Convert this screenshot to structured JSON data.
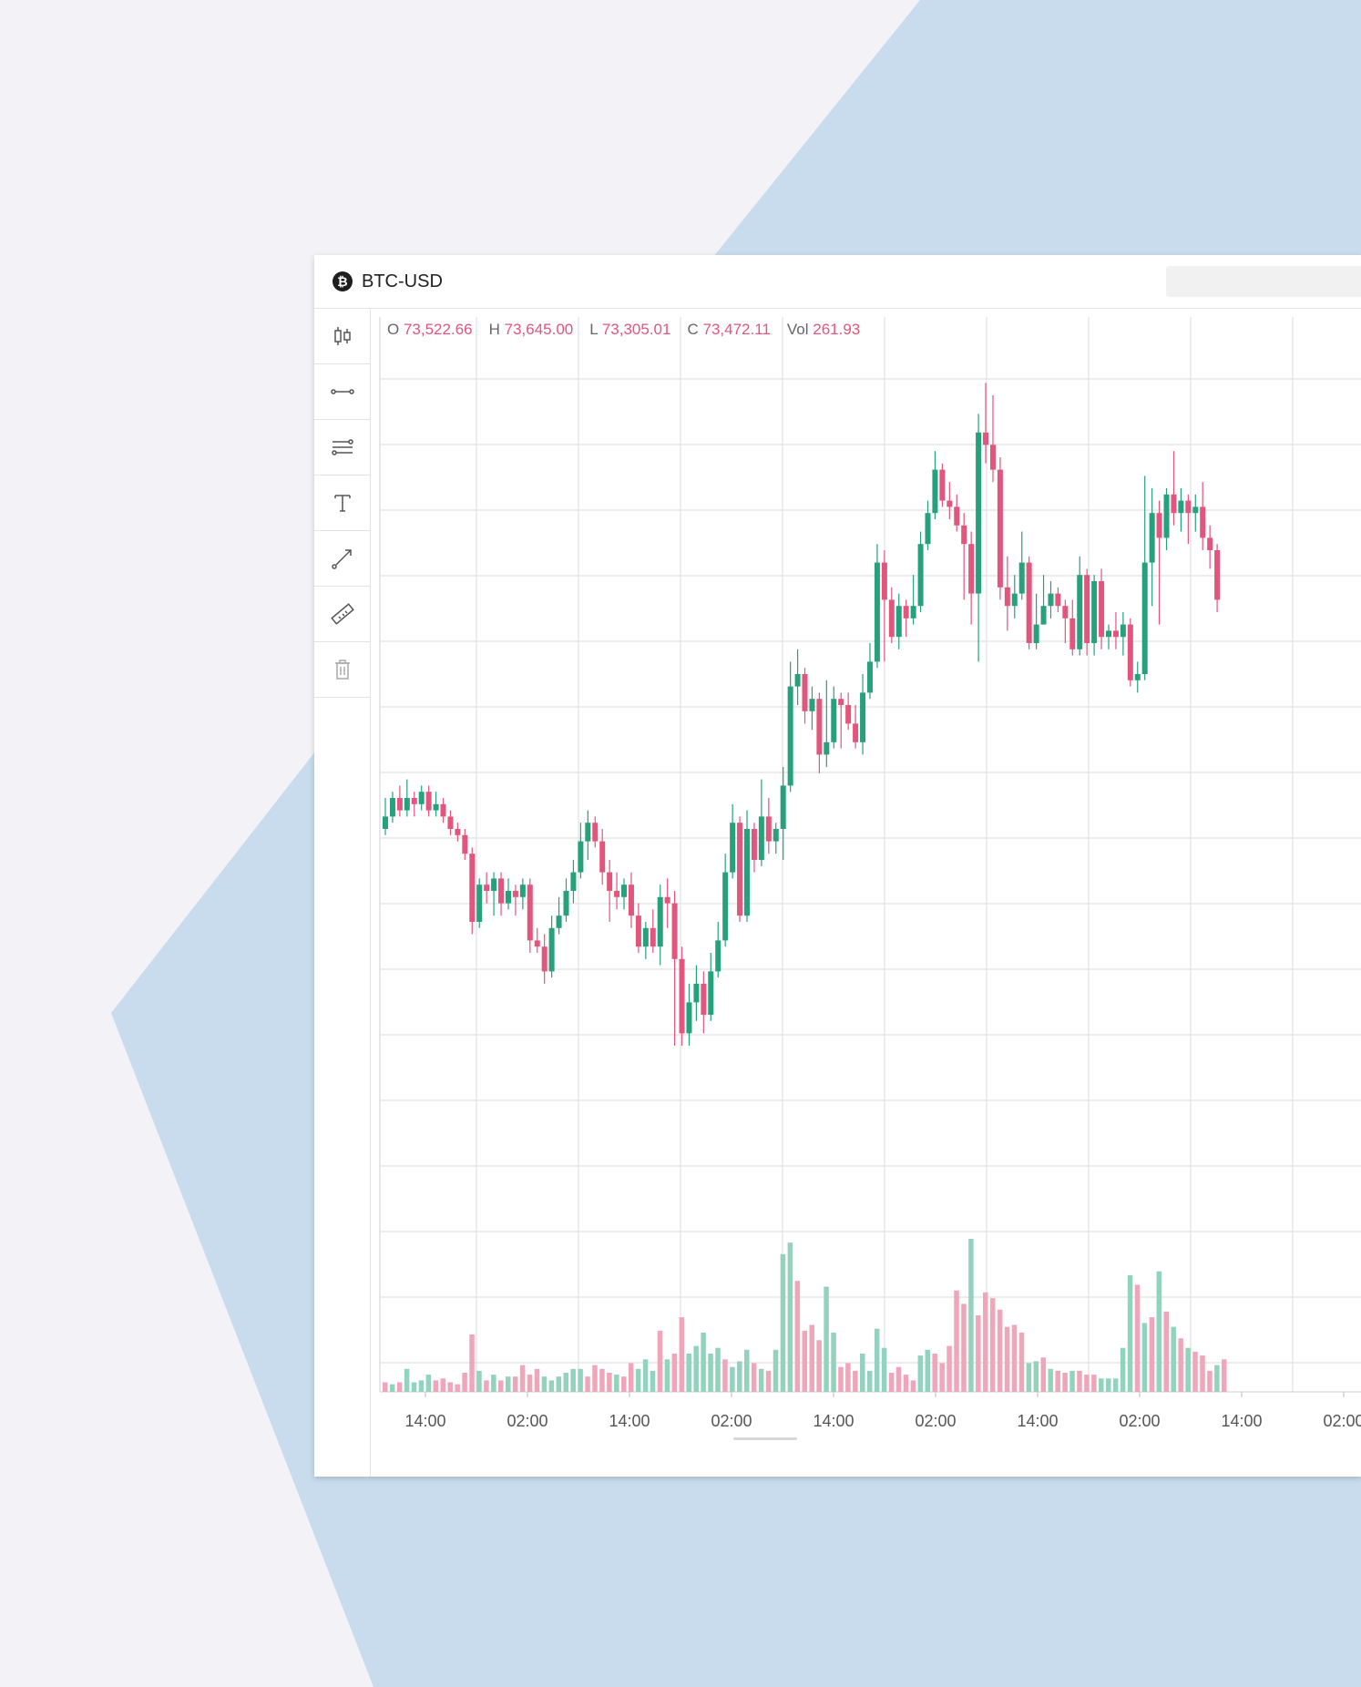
{
  "colors": {
    "background": "#f2f2f7",
    "shape": "#c8dcee",
    "up": "#26a17c",
    "down": "#e2557c",
    "up_volume": "#93d3bd",
    "down_volume": "#f0a6ba",
    "grid": "#e1e1e1"
  },
  "header": {
    "logo_glyph": "₿",
    "symbol": "BTC-USD"
  },
  "toolbar": {
    "tools": [
      "candlestick-icon",
      "horizontal-line-icon",
      "parallel-lines-icon",
      "text-icon",
      "trend-line-icon",
      "ruler-icon",
      "trash-icon"
    ]
  },
  "ohlc": {
    "o_label": "O",
    "o_value": "73,522.66",
    "h_label": "H",
    "h_value": "73,645.00",
    "l_label": "L",
    "l_value": "73,305.01",
    "c_label": "C",
    "c_value": "73,472.11",
    "vol_label": "Vol",
    "vol_value": "261.93"
  },
  "chart_data": {
    "type": "candlestick",
    "x_tick_labels": [
      "14:00",
      "02:00",
      "14:00",
      "02:00",
      "14:00",
      "02:00",
      "14:00",
      "02:00",
      "14:00",
      "02:00"
    ],
    "grid": true,
    "candles": [
      [
        0.35,
        0.37,
        0.4,
        0.34
      ],
      [
        0.37,
        0.4,
        0.41,
        0.36
      ],
      [
        0.4,
        0.38,
        0.42,
        0.37
      ],
      [
        0.38,
        0.4,
        0.43,
        0.37
      ],
      [
        0.4,
        0.39,
        0.41,
        0.37
      ],
      [
        0.39,
        0.41,
        0.42,
        0.38
      ],
      [
        0.41,
        0.38,
        0.42,
        0.37
      ],
      [
        0.38,
        0.39,
        0.41,
        0.37
      ],
      [
        0.39,
        0.37,
        0.4,
        0.36
      ],
      [
        0.37,
        0.35,
        0.38,
        0.34
      ],
      [
        0.35,
        0.34,
        0.36,
        0.33
      ],
      [
        0.34,
        0.31,
        0.35,
        0.3
      ],
      [
        0.31,
        0.2,
        0.32,
        0.18
      ],
      [
        0.2,
        0.26,
        0.27,
        0.19
      ],
      [
        0.26,
        0.25,
        0.28,
        0.23
      ],
      [
        0.25,
        0.27,
        0.28,
        0.21
      ],
      [
        0.27,
        0.23,
        0.28,
        0.21
      ],
      [
        0.23,
        0.25,
        0.27,
        0.22
      ],
      [
        0.25,
        0.24,
        0.26,
        0.21
      ],
      [
        0.24,
        0.26,
        0.27,
        0.22
      ],
      [
        0.26,
        0.17,
        0.27,
        0.15
      ],
      [
        0.17,
        0.16,
        0.19,
        0.15
      ],
      [
        0.16,
        0.12,
        0.18,
        0.1
      ],
      [
        0.12,
        0.19,
        0.21,
        0.11
      ],
      [
        0.19,
        0.21,
        0.24,
        0.18
      ],
      [
        0.21,
        0.25,
        0.27,
        0.2
      ],
      [
        0.25,
        0.28,
        0.3,
        0.23
      ],
      [
        0.28,
        0.33,
        0.36,
        0.27
      ],
      [
        0.33,
        0.36,
        0.38,
        0.3
      ],
      [
        0.36,
        0.33,
        0.37,
        0.32
      ],
      [
        0.33,
        0.28,
        0.35,
        0.26
      ],
      [
        0.28,
        0.25,
        0.3,
        0.2
      ],
      [
        0.25,
        0.24,
        0.28,
        0.22
      ],
      [
        0.24,
        0.26,
        0.27,
        0.22
      ],
      [
        0.26,
        0.21,
        0.28,
        0.19
      ],
      [
        0.21,
        0.16,
        0.23,
        0.15
      ],
      [
        0.16,
        0.19,
        0.2,
        0.14
      ],
      [
        0.19,
        0.16,
        0.22,
        0.15
      ],
      [
        0.16,
        0.24,
        0.26,
        0.13
      ],
      [
        0.24,
        0.23,
        0.27,
        0.19
      ],
      [
        0.23,
        0.14,
        0.25,
        0.0
      ],
      [
        0.14,
        0.02,
        0.16,
        0.0
      ],
      [
        0.02,
        0.07,
        0.1,
        0.0
      ],
      [
        0.07,
        0.1,
        0.13,
        0.04
      ],
      [
        0.1,
        0.05,
        0.12,
        0.02
      ],
      [
        0.05,
        0.12,
        0.15,
        0.04
      ],
      [
        0.12,
        0.17,
        0.2,
        0.11
      ],
      [
        0.17,
        0.28,
        0.31,
        0.16
      ],
      [
        0.28,
        0.36,
        0.39,
        0.27
      ],
      [
        0.36,
        0.21,
        0.37,
        0.2
      ],
      [
        0.21,
        0.35,
        0.38,
        0.2
      ],
      [
        0.35,
        0.3,
        0.36,
        0.28
      ],
      [
        0.3,
        0.37,
        0.43,
        0.29
      ],
      [
        0.37,
        0.33,
        0.4,
        0.31
      ],
      [
        0.33,
        0.35,
        0.36,
        0.31
      ],
      [
        0.35,
        0.42,
        0.45,
        0.3
      ],
      [
        0.42,
        0.58,
        0.62,
        0.41
      ],
      [
        0.58,
        0.6,
        0.64,
        0.55
      ],
      [
        0.6,
        0.54,
        0.61,
        0.52
      ],
      [
        0.54,
        0.56,
        0.58,
        0.51
      ],
      [
        0.56,
        0.47,
        0.57,
        0.44
      ],
      [
        0.47,
        0.49,
        0.59,
        0.45
      ],
      [
        0.49,
        0.56,
        0.58,
        0.48
      ],
      [
        0.56,
        0.55,
        0.57,
        0.48
      ],
      [
        0.55,
        0.52,
        0.57,
        0.51
      ],
      [
        0.52,
        0.49,
        0.55,
        0.48
      ],
      [
        0.49,
        0.57,
        0.6,
        0.47
      ],
      [
        0.57,
        0.62,
        0.65,
        0.56
      ],
      [
        0.62,
        0.78,
        0.81,
        0.61
      ],
      [
        0.78,
        0.72,
        0.8,
        0.62
      ],
      [
        0.72,
        0.66,
        0.74,
        0.65
      ],
      [
        0.66,
        0.71,
        0.73,
        0.64
      ],
      [
        0.71,
        0.69,
        0.72,
        0.66
      ],
      [
        0.69,
        0.71,
        0.76,
        0.68
      ],
      [
        0.71,
        0.81,
        0.83,
        0.7
      ],
      [
        0.81,
        0.86,
        0.88,
        0.8
      ],
      [
        0.86,
        0.93,
        0.96,
        0.85
      ],
      [
        0.93,
        0.88,
        0.94,
        0.87
      ],
      [
        0.88,
        0.87,
        0.91,
        0.85
      ],
      [
        0.87,
        0.84,
        0.89,
        0.83
      ],
      [
        0.84,
        0.81,
        0.86,
        0.72
      ],
      [
        0.81,
        0.73,
        0.83,
        0.68
      ],
      [
        0.73,
        0.99,
        1.02,
        0.62
      ],
      [
        0.99,
        0.97,
        1.07,
        0.94
      ],
      [
        0.97,
        0.93,
        1.05,
        0.91
      ],
      [
        0.93,
        0.74,
        0.95,
        0.72
      ],
      [
        0.74,
        0.71,
        0.79,
        0.67
      ],
      [
        0.71,
        0.73,
        0.76,
        0.69
      ],
      [
        0.73,
        0.78,
        0.83,
        0.72
      ],
      [
        0.78,
        0.65,
        0.79,
        0.64
      ],
      [
        0.65,
        0.68,
        0.73,
        0.64
      ],
      [
        0.68,
        0.71,
        0.76,
        0.69
      ],
      [
        0.71,
        0.73,
        0.75,
        0.69
      ],
      [
        0.73,
        0.71,
        0.74,
        0.7
      ],
      [
        0.71,
        0.69,
        0.72,
        0.65
      ],
      [
        0.69,
        0.64,
        0.72,
        0.63
      ],
      [
        0.64,
        0.76,
        0.79,
        0.63
      ],
      [
        0.76,
        0.65,
        0.77,
        0.63
      ],
      [
        0.65,
        0.75,
        0.76,
        0.63
      ],
      [
        0.75,
        0.66,
        0.77,
        0.64
      ],
      [
        0.66,
        0.67,
        0.68,
        0.64
      ],
      [
        0.67,
        0.66,
        0.7,
        0.64
      ],
      [
        0.66,
        0.68,
        0.7,
        0.63
      ],
      [
        0.68,
        0.59,
        0.69,
        0.58
      ],
      [
        0.59,
        0.6,
        0.62,
        0.57
      ],
      [
        0.6,
        0.78,
        0.92,
        0.59
      ],
      [
        0.78,
        0.86,
        0.9,
        0.71
      ],
      [
        0.86,
        0.82,
        0.88,
        0.68
      ],
      [
        0.82,
        0.89,
        0.9,
        0.8
      ],
      [
        0.89,
        0.86,
        0.96,
        0.84
      ],
      [
        0.86,
        0.88,
        0.9,
        0.83
      ],
      [
        0.88,
        0.86,
        0.89,
        0.81
      ],
      [
        0.86,
        0.87,
        0.89,
        0.83
      ],
      [
        0.87,
        0.82,
        0.91,
        0.8
      ],
      [
        0.82,
        0.8,
        0.84,
        0.77
      ],
      [
        0.8,
        0.72,
        0.81,
        0.7
      ]
    ],
    "volumes": [
      [
        0.05,
        0
      ],
      [
        0.04,
        1
      ],
      [
        0.05,
        0
      ],
      [
        0.12,
        1
      ],
      [
        0.05,
        1
      ],
      [
        0.06,
        1
      ],
      [
        0.09,
        1
      ],
      [
        0.06,
        0
      ],
      [
        0.07,
        0
      ],
      [
        0.05,
        0
      ],
      [
        0.04,
        0
      ],
      [
        0.1,
        0
      ],
      [
        0.3,
        0
      ],
      [
        0.11,
        1
      ],
      [
        0.06,
        0
      ],
      [
        0.09,
        1
      ],
      [
        0.06,
        0
      ],
      [
        0.08,
        1
      ],
      [
        0.08,
        0
      ],
      [
        0.14,
        0
      ],
      [
        0.09,
        0
      ],
      [
        0.12,
        0
      ],
      [
        0.08,
        1
      ],
      [
        0.06,
        1
      ],
      [
        0.08,
        1
      ],
      [
        0.1,
        1
      ],
      [
        0.12,
        1
      ],
      [
        0.12,
        1
      ],
      [
        0.08,
        0
      ],
      [
        0.14,
        0
      ],
      [
        0.12,
        0
      ],
      [
        0.1,
        0
      ],
      [
        0.09,
        1
      ],
      [
        0.08,
        0
      ],
      [
        0.15,
        0
      ],
      [
        0.12,
        1
      ],
      [
        0.17,
        1
      ],
      [
        0.11,
        1
      ],
      [
        0.32,
        0
      ],
      [
        0.17,
        1
      ],
      [
        0.2,
        0
      ],
      [
        0.39,
        0
      ],
      [
        0.2,
        1
      ],
      [
        0.24,
        1
      ],
      [
        0.31,
        1
      ],
      [
        0.2,
        1
      ],
      [
        0.23,
        1
      ],
      [
        0.17,
        0
      ],
      [
        0.13,
        1
      ],
      [
        0.16,
        1
      ],
      [
        0.22,
        1
      ],
      [
        0.15,
        0
      ],
      [
        0.12,
        1
      ],
      [
        0.11,
        0
      ],
      [
        0.22,
        1
      ],
      [
        0.72,
        1
      ],
      [
        0.78,
        1
      ],
      [
        0.58,
        0
      ],
      [
        0.32,
        0
      ],
      [
        0.35,
        0
      ],
      [
        0.27,
        0
      ],
      [
        0.55,
        1
      ],
      [
        0.31,
        1
      ],
      [
        0.13,
        0
      ],
      [
        0.15,
        0
      ],
      [
        0.11,
        0
      ],
      [
        0.2,
        1
      ],
      [
        0.11,
        1
      ],
      [
        0.33,
        1
      ],
      [
        0.23,
        1
      ],
      [
        0.1,
        0
      ],
      [
        0.13,
        0
      ],
      [
        0.09,
        0
      ],
      [
        0.06,
        0
      ],
      [
        0.19,
        1
      ],
      [
        0.22,
        1
      ],
      [
        0.2,
        0
      ],
      [
        0.15,
        0
      ],
      [
        0.24,
        0
      ],
      [
        0.53,
        0
      ],
      [
        0.46,
        0
      ],
      [
        0.8,
        1
      ],
      [
        0.4,
        0
      ],
      [
        0.52,
        0
      ],
      [
        0.49,
        0
      ],
      [
        0.43,
        0
      ],
      [
        0.34,
        0
      ],
      [
        0.35,
        0
      ],
      [
        0.31,
        0
      ],
      [
        0.15,
        1
      ],
      [
        0.16,
        1
      ],
      [
        0.18,
        0
      ],
      [
        0.12,
        1
      ],
      [
        0.11,
        0
      ],
      [
        0.1,
        0
      ],
      [
        0.11,
        1
      ],
      [
        0.11,
        0
      ],
      [
        0.09,
        0
      ],
      [
        0.09,
        0
      ],
      [
        0.07,
        1
      ],
      [
        0.07,
        1
      ],
      [
        0.07,
        1
      ],
      [
        0.23,
        1
      ],
      [
        0.61,
        1
      ],
      [
        0.56,
        0
      ],
      [
        0.36,
        1
      ],
      [
        0.39,
        0
      ],
      [
        0.63,
        1
      ],
      [
        0.42,
        0
      ],
      [
        0.34,
        1
      ],
      [
        0.28,
        0
      ],
      [
        0.23,
        1
      ],
      [
        0.21,
        0
      ],
      [
        0.19,
        0
      ],
      [
        0.11,
        0
      ],
      [
        0.14,
        1
      ],
      [
        0.17,
        0
      ]
    ]
  }
}
